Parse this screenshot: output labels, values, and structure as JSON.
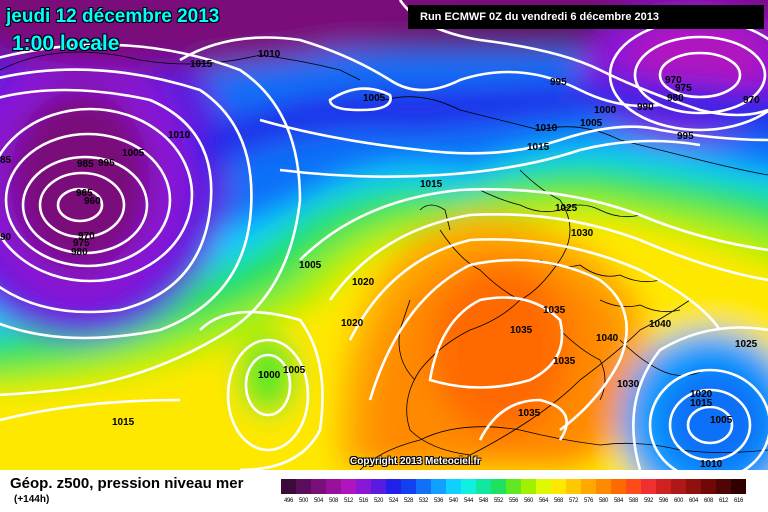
{
  "header": {
    "date": "jeudi 12 décembre 2013",
    "time": "1:00 locale",
    "run": "Run ECMWF 0Z du vendredi 6 décembre 2013"
  },
  "copyright": "Copyright 2013 Meteociel.fr",
  "legend": {
    "title": "Géop. z500, pression niveau mer",
    "subtitle": "(+144h)",
    "scale": [
      {
        "value": "496",
        "color": "#3b0a3b"
      },
      {
        "value": "500",
        "color": "#5a0d5a"
      },
      {
        "value": "504",
        "color": "#7a0f7a"
      },
      {
        "value": "508",
        "color": "#99119b"
      },
      {
        "value": "512",
        "color": "#b013c0"
      },
      {
        "value": "516",
        "color": "#8a16d6"
      },
      {
        "value": "520",
        "color": "#5a1ae0"
      },
      {
        "value": "524",
        "color": "#2020e8"
      },
      {
        "value": "528",
        "color": "#1040f0"
      },
      {
        "value": "532",
        "color": "#1070f8"
      },
      {
        "value": "536",
        "color": "#10a0ff"
      },
      {
        "value": "540",
        "color": "#10d0ff"
      },
      {
        "value": "544",
        "color": "#10f0e0"
      },
      {
        "value": "548",
        "color": "#10e8a0"
      },
      {
        "value": "552",
        "color": "#20e060"
      },
      {
        "value": "556",
        "color": "#60e820"
      },
      {
        "value": "560",
        "color": "#a0f000"
      },
      {
        "value": "564",
        "color": "#e0f800"
      },
      {
        "value": "568",
        "color": "#ffe800"
      },
      {
        "value": "572",
        "color": "#ffc800"
      },
      {
        "value": "576",
        "color": "#ffa800"
      },
      {
        "value": "580",
        "color": "#ff8a00"
      },
      {
        "value": "584",
        "color": "#ff6a00"
      },
      {
        "value": "588",
        "color": "#ff4a1a"
      },
      {
        "value": "592",
        "color": "#f03030"
      },
      {
        "value": "596",
        "color": "#d02020"
      },
      {
        "value": "600",
        "color": "#b01818"
      },
      {
        "value": "604",
        "color": "#901010"
      },
      {
        "value": "608",
        "color": "#700808"
      },
      {
        "value": "612",
        "color": "#500404"
      },
      {
        "value": "616",
        "color": "#300000"
      }
    ]
  },
  "pressure_labels": [
    {
      "text": "1015"
    },
    {
      "text": "1010"
    },
    {
      "text": "1005"
    },
    {
      "text": "995"
    },
    {
      "text": "970"
    },
    {
      "text": "975"
    },
    {
      "text": "980"
    },
    {
      "text": "990"
    },
    {
      "text": "1000"
    },
    {
      "text": "970"
    },
    {
      "text": "1005"
    },
    {
      "text": "995"
    },
    {
      "text": "1010"
    },
    {
      "text": "1015"
    },
    {
      "text": "1010"
    },
    {
      "text": "1005"
    },
    {
      "text": "985"
    },
    {
      "text": "995"
    },
    {
      "text": "965"
    },
    {
      "text": "960"
    },
    {
      "text": "970"
    },
    {
      "text": "975"
    },
    {
      "text": "980"
    },
    {
      "text": "1015"
    },
    {
      "text": "1025"
    },
    {
      "text": "1030"
    },
    {
      "text": "1005"
    },
    {
      "text": "1020"
    },
    {
      "text": "1020"
    },
    {
      "text": "1035"
    },
    {
      "text": "1035"
    },
    {
      "text": "1040"
    },
    {
      "text": "1040"
    },
    {
      "text": "1035"
    },
    {
      "text": "1025"
    },
    {
      "text": "1000"
    },
    {
      "text": "1005"
    },
    {
      "text": "1030"
    },
    {
      "text": "1020"
    },
    {
      "text": "1015"
    },
    {
      "text": "1005"
    },
    {
      "text": "1015"
    },
    {
      "text": "1035"
    },
    {
      "text": "1010"
    },
    {
      "text": "85"
    },
    {
      "text": "90"
    }
  ]
}
